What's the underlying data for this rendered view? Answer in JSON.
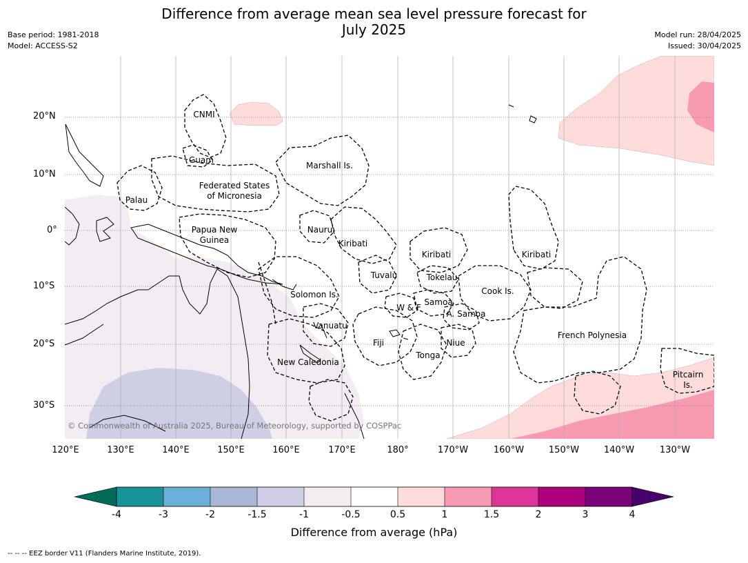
{
  "title_line1": "Difference from average mean sea level pressure forecast for",
  "title_line2": "July 2025",
  "base_period": "Base period: 1981-2018",
  "model": "Model: ACCESS-S2",
  "model_run": "Model run: 28/04/2025",
  "issued": "Issued: 30/04/2025",
  "lat_labels": [
    "20°N",
    "10°N",
    "0°",
    "10°S",
    "20°S",
    "30°S"
  ],
  "lon_labels": [
    "120°E",
    "130°E",
    "140°E",
    "150°E",
    "160°E",
    "170°E",
    "180°",
    "170°W",
    "160°W",
    "150°W",
    "140°W",
    "130°W"
  ],
  "regions": {
    "cnmi": "CNMI",
    "guam": "Guam",
    "marshall": "Marshall Is.",
    "fsm1": "Federated States",
    "fsm2": "of Micronesia",
    "palau": "Palau",
    "png1": "Papua New",
    "png2": "Guinea",
    "nauru": "Nauru",
    "kiribati_w": "Kiribati",
    "kiribati_c": "Kiribati",
    "kiribati_e": "Kiribati",
    "tuvalu": "Tuvalu",
    "tokelau": "Tokelau",
    "solomon": "Solomon Is.",
    "cook": "Cook Is.",
    "samoa": "Samoa",
    "wf": "W & F",
    "asamoa": "A. Samoa",
    "vanuatu": "Vanuatu",
    "fiji": "Fiji",
    "niue": "Niue",
    "tonga": "Tonga",
    "fp": "French Polynesia",
    "newcal": "New Caledonia",
    "pitcairn1": "Pitcairn",
    "pitcairn2": "Is."
  },
  "copyright": "© Commonwealth of Australia 2025, Bureau of Meteorology, supported by COSPPac",
  "colorbar": {
    "ticks": [
      "-4",
      "-3",
      "-2",
      "-1.5",
      "-1",
      "-0.5",
      "0.5",
      "1",
      "1.5",
      "2",
      "3",
      "4"
    ],
    "colors": [
      "#006b5a",
      "#1a9398",
      "#6baed6",
      "#a6b8d6",
      "#cecfe5",
      "#f3ecf3",
      "#ffffff",
      "#ffdcdc",
      "#f99ab3",
      "#dd3497",
      "#ae017e",
      "#7a0177",
      "#49006a"
    ],
    "label": "Difference from average (hPa)"
  },
  "footer": "--  --  -- EEZ border V11 (Flanders Marine Institute, 2019)."
}
